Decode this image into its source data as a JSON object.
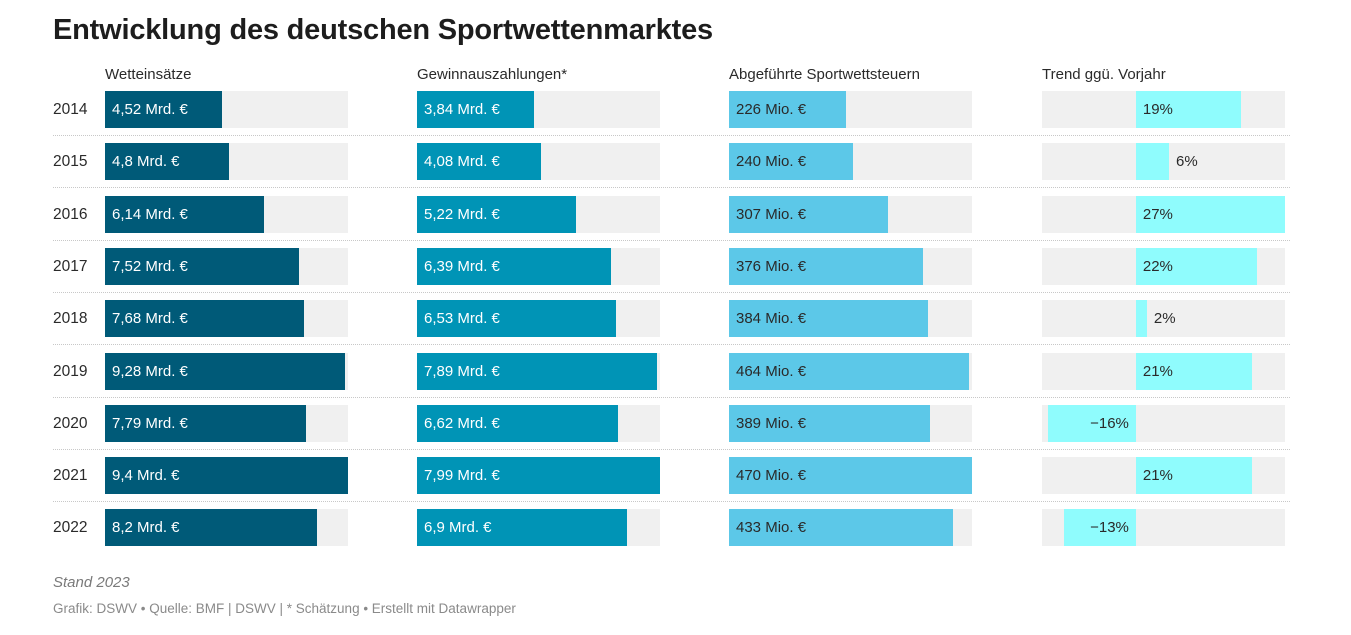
{
  "title": "Entwicklung des deutschen Sportwettenmarktes",
  "columns": {
    "stakes": "Wetteinsätze",
    "payouts": "Gewinnauszahlungen*",
    "tax": "Abgeführte Sportwettsteuern",
    "trend": "Trend ggü. Vorjahr"
  },
  "colors": {
    "stakes": "#005a78",
    "payouts": "#0094b6",
    "tax": "#5cc8e8",
    "trend": "#8ffcfd",
    "track": "#f0f0f0"
  },
  "chart_data": {
    "type": "table",
    "years": [
      "2014",
      "2015",
      "2016",
      "2017",
      "2018",
      "2019",
      "2020",
      "2021",
      "2022"
    ],
    "series": [
      {
        "name": "Wetteinsätze",
        "unit": "Mrd. €",
        "values": [
          4.52,
          4.8,
          6.14,
          7.52,
          7.68,
          9.28,
          7.79,
          9.4,
          8.2
        ],
        "labels": [
          "4,52 Mrd. €",
          "4,8 Mrd. €",
          "6,14 Mrd. €",
          "7,52 Mrd. €",
          "7,68 Mrd. €",
          "9,28 Mrd. €",
          "7,79 Mrd. €",
          "9,4 Mrd. €",
          "8,2 Mrd. €"
        ],
        "max": 9.4
      },
      {
        "name": "Gewinnauszahlungen*",
        "unit": "Mrd. €",
        "values": [
          3.84,
          4.08,
          5.22,
          6.39,
          6.53,
          7.89,
          6.62,
          7.99,
          6.9
        ],
        "labels": [
          "3,84 Mrd. €",
          "4,08 Mrd. €",
          "5,22 Mrd. €",
          "6,39 Mrd. €",
          "6,53 Mrd. €",
          "7,89 Mrd. €",
          "6,62 Mrd. €",
          "7,99 Mrd. €",
          "6,9 Mrd. €"
        ],
        "max": 7.99
      },
      {
        "name": "Abgeführte Sportwettsteuern",
        "unit": "Mio. €",
        "values": [
          226,
          240,
          307,
          376,
          384,
          464,
          389,
          470,
          433
        ],
        "labels": [
          "226 Mio. €",
          "240 Mio. €",
          "307 Mio. €",
          "376 Mio. €",
          "384 Mio. €",
          "464 Mio. €",
          "389 Mio. €",
          "470 Mio. €",
          "433 Mio. €"
        ],
        "max": 470
      },
      {
        "name": "Trend ggü. Vorjahr",
        "unit": "%",
        "values": [
          19,
          6,
          27,
          22,
          2,
          21,
          -16,
          21,
          -13
        ],
        "labels": [
          "19%",
          "6%",
          "27%",
          "22%",
          "2%",
          "21%",
          "−16%",
          "21%",
          "−13%"
        ],
        "range": [
          -17,
          27
        ]
      }
    ]
  },
  "footer": {
    "note": "Stand 2023",
    "source": "Grafik: DSWV • Quelle: BMF | DSWV | * Schätzung • Erstellt mit Datawrapper"
  }
}
